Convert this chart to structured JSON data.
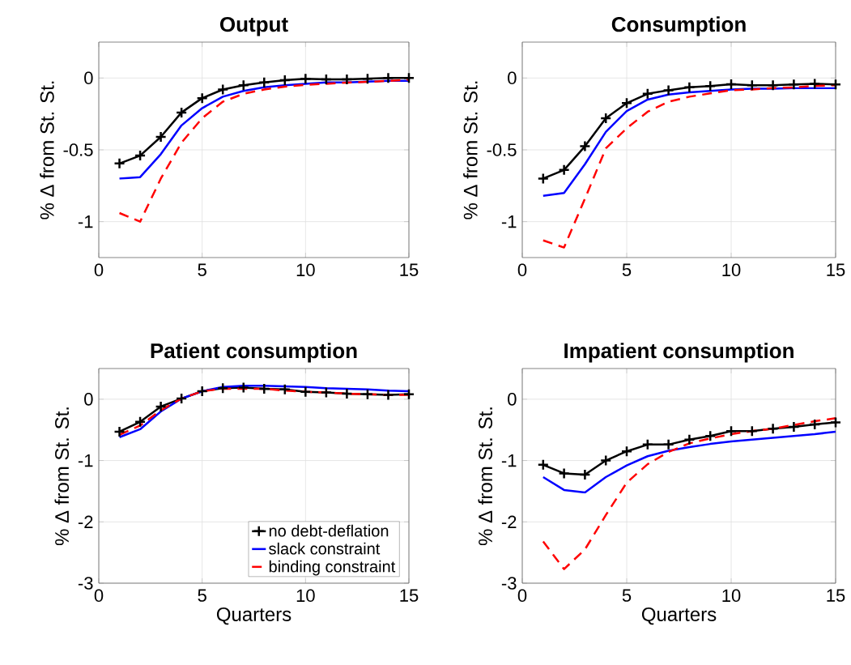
{
  "chart_data": [
    {
      "type": "line",
      "title": "Output",
      "ylabel": "% Δ from St. St.",
      "x": [
        1,
        2,
        3,
        4,
        5,
        6,
        7,
        8,
        9,
        10,
        11,
        12,
        13,
        14,
        15
      ],
      "xlim": [
        0,
        15
      ],
      "xticks": [
        0,
        5,
        10,
        15
      ],
      "ylim": [
        -1.25,
        0.25
      ],
      "yticks": [
        -1,
        -0.5,
        0
      ],
      "grid": true,
      "series": [
        {
          "color": "#000000",
          "marker": "cross",
          "line_style": "solid",
          "values": [
            -0.595,
            -0.54,
            -0.41,
            -0.24,
            -0.14,
            -0.08,
            -0.05,
            -0.03,
            -0.015,
            -0.005,
            -0.01,
            -0.01,
            -0.005,
            0,
            0
          ]
        },
        {
          "color": "#0000ff",
          "line_style": "solid",
          "values": [
            -0.7,
            -0.69,
            -0.53,
            -0.33,
            -0.21,
            -0.13,
            -0.09,
            -0.065,
            -0.05,
            -0.04,
            -0.03,
            -0.03,
            -0.025,
            -0.02,
            -0.02
          ]
        },
        {
          "color": "#ff0000",
          "line_style": "dashed",
          "values": [
            -0.94,
            -1.0,
            -0.7,
            -0.45,
            -0.28,
            -0.165,
            -0.11,
            -0.08,
            -0.06,
            -0.047,
            -0.04,
            -0.032,
            -0.027,
            -0.02,
            -0.012
          ]
        }
      ]
    },
    {
      "type": "line",
      "title": "Consumption",
      "ylabel": "% Δ from St. St.",
      "x": [
        1,
        2,
        3,
        4,
        5,
        6,
        7,
        8,
        9,
        10,
        11,
        12,
        13,
        14,
        15
      ],
      "xlim": [
        0,
        15
      ],
      "xticks": [
        0,
        5,
        10,
        15
      ],
      "ylim": [
        -1.25,
        0.25
      ],
      "yticks": [
        -1,
        -0.5,
        0
      ],
      "grid": true,
      "series": [
        {
          "color": "#000000",
          "marker": "cross",
          "line_style": "solid",
          "values": [
            -0.7,
            -0.64,
            -0.475,
            -0.28,
            -0.175,
            -0.11,
            -0.085,
            -0.065,
            -0.056,
            -0.043,
            -0.05,
            -0.05,
            -0.045,
            -0.04,
            -0.045
          ]
        },
        {
          "color": "#0000ff",
          "line_style": "solid",
          "values": [
            -0.82,
            -0.8,
            -0.6,
            -0.375,
            -0.23,
            -0.15,
            -0.115,
            -0.1,
            -0.09,
            -0.08,
            -0.075,
            -0.075,
            -0.07,
            -0.07,
            -0.07
          ]
        },
        {
          "color": "#ff0000",
          "line_style": "dashed",
          "values": [
            -1.13,
            -1.18,
            -0.84,
            -0.49,
            -0.35,
            -0.235,
            -0.165,
            -0.13,
            -0.107,
            -0.085,
            -0.08,
            -0.07,
            -0.065,
            -0.055,
            -0.05
          ]
        }
      ]
    },
    {
      "type": "line",
      "title": "Patient consumption",
      "xlabel": "Quarters",
      "ylabel": "% Δ from St. St.",
      "x": [
        1,
        2,
        3,
        4,
        5,
        6,
        7,
        8,
        9,
        10,
        11,
        12,
        13,
        14,
        15
      ],
      "xlim": [
        0,
        15
      ],
      "xticks": [
        0,
        5,
        10,
        15
      ],
      "ylim": [
        -3,
        0.5
      ],
      "yticks": [
        -3,
        -2,
        -1,
        0
      ],
      "grid": true,
      "legend": "bottom right",
      "series": [
        {
          "name": "no debt-deflation",
          "color": "#000000",
          "marker": "cross",
          "line_style": "solid",
          "values": [
            -0.53,
            -0.37,
            -0.12,
            0.01,
            0.13,
            0.18,
            0.19,
            0.17,
            0.16,
            0.12,
            0.11,
            0.09,
            0.08,
            0.07,
            0.08
          ]
        },
        {
          "name": "slack constraint",
          "color": "#0000ff",
          "line_style": "solid",
          "values": [
            -0.62,
            -0.49,
            -0.2,
            0.01,
            0.13,
            0.2,
            0.22,
            0.22,
            0.21,
            0.2,
            0.18,
            0.17,
            0.16,
            0.14,
            0.13
          ]
        },
        {
          "name": "binding constraint",
          "color": "#ff0000",
          "line_style": "dashed",
          "values": [
            -0.58,
            -0.43,
            -0.18,
            0.01,
            0.13,
            0.17,
            0.17,
            0.17,
            0.14,
            0.12,
            0.11,
            0.09,
            0.08,
            0.07,
            0.07
          ]
        }
      ]
    },
    {
      "type": "line",
      "title": "Impatient consumption",
      "xlabel": "Quarters",
      "ylabel": "% Δ from St. St.",
      "x": [
        1,
        2,
        3,
        4,
        5,
        6,
        7,
        8,
        9,
        10,
        11,
        12,
        13,
        14,
        15
      ],
      "xlim": [
        0,
        15
      ],
      "xticks": [
        0,
        5,
        10,
        15
      ],
      "ylim": [
        -3,
        0.5
      ],
      "yticks": [
        -3,
        -2,
        -1,
        0
      ],
      "grid": true,
      "series": [
        {
          "color": "#000000",
          "marker": "cross",
          "line_style": "solid",
          "values": [
            -1.07,
            -1.21,
            -1.23,
            -1.0,
            -0.85,
            -0.74,
            -0.74,
            -0.66,
            -0.6,
            -0.52,
            -0.52,
            -0.48,
            -0.45,
            -0.41,
            -0.38
          ]
        },
        {
          "color": "#0000ff",
          "line_style": "solid",
          "values": [
            -1.27,
            -1.48,
            -1.52,
            -1.27,
            -1.08,
            -0.93,
            -0.84,
            -0.78,
            -0.73,
            -0.69,
            -0.66,
            -0.63,
            -0.6,
            -0.57,
            -0.53
          ]
        },
        {
          "color": "#ff0000",
          "line_style": "dashed",
          "values": [
            -2.32,
            -2.77,
            -2.45,
            -1.89,
            -1.36,
            -1.06,
            -0.86,
            -0.72,
            -0.64,
            -0.57,
            -0.52,
            -0.48,
            -0.42,
            -0.36,
            -0.31
          ]
        }
      ]
    }
  ]
}
